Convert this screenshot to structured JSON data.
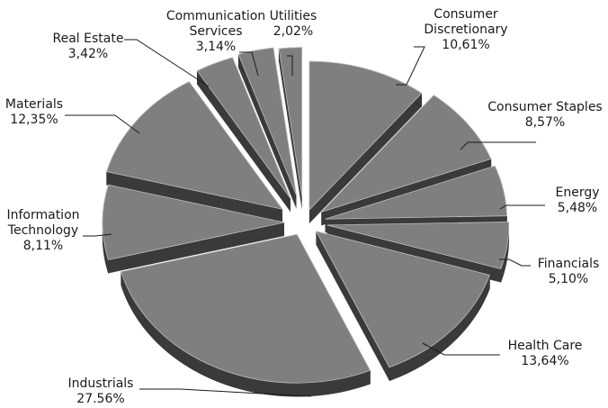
{
  "chart_data": {
    "type": "pie",
    "title": "",
    "three_d": true,
    "exploded": true,
    "start_angle_deg": 0,
    "direction": "clockwise",
    "colors": {
      "top": "#7f7f7f",
      "side": "#3a3a3a",
      "edge": "#bdbdbd",
      "leader": "#1a1a1a"
    },
    "slices": [
      {
        "name": "Consumer Discretionary",
        "value": 10.61,
        "label": "10,61%",
        "name_lines": [
          "Consumer",
          "Discretionary"
        ]
      },
      {
        "name": "Consumer Staples",
        "value": 8.57,
        "label": "8,57%",
        "name_lines": [
          "Consumer Staples"
        ]
      },
      {
        "name": "Energy",
        "value": 5.48,
        "label": "5,48%",
        "name_lines": [
          "Energy"
        ]
      },
      {
        "name": "Financials",
        "value": 5.1,
        "label": "5,10%",
        "name_lines": [
          "Financials"
        ]
      },
      {
        "name": "Health Care",
        "value": 13.64,
        "label": "13,64%",
        "name_lines": [
          "Health Care"
        ]
      },
      {
        "name": "Industrials",
        "value": 27.56,
        "label": "27.56%",
        "name_lines": [
          "Industrials"
        ]
      },
      {
        "name": "Information Technology",
        "value": 8.11,
        "label": "8,11%",
        "name_lines": [
          "Information",
          "Technology"
        ]
      },
      {
        "name": "Materials",
        "value": 12.35,
        "label": "12,35%",
        "name_lines": [
          "Materials"
        ]
      },
      {
        "name": "Real Estate",
        "value": 3.42,
        "label": "3,42%",
        "name_lines": [
          "Real Estate"
        ]
      },
      {
        "name": "Communication Services",
        "value": 3.14,
        "label": "3,14%",
        "name_lines": [
          "Communication",
          "Services"
        ]
      },
      {
        "name": "Utilities",
        "value": 2.02,
        "label": "2,02%",
        "name_lines": [
          "Utilities"
        ]
      }
    ]
  }
}
